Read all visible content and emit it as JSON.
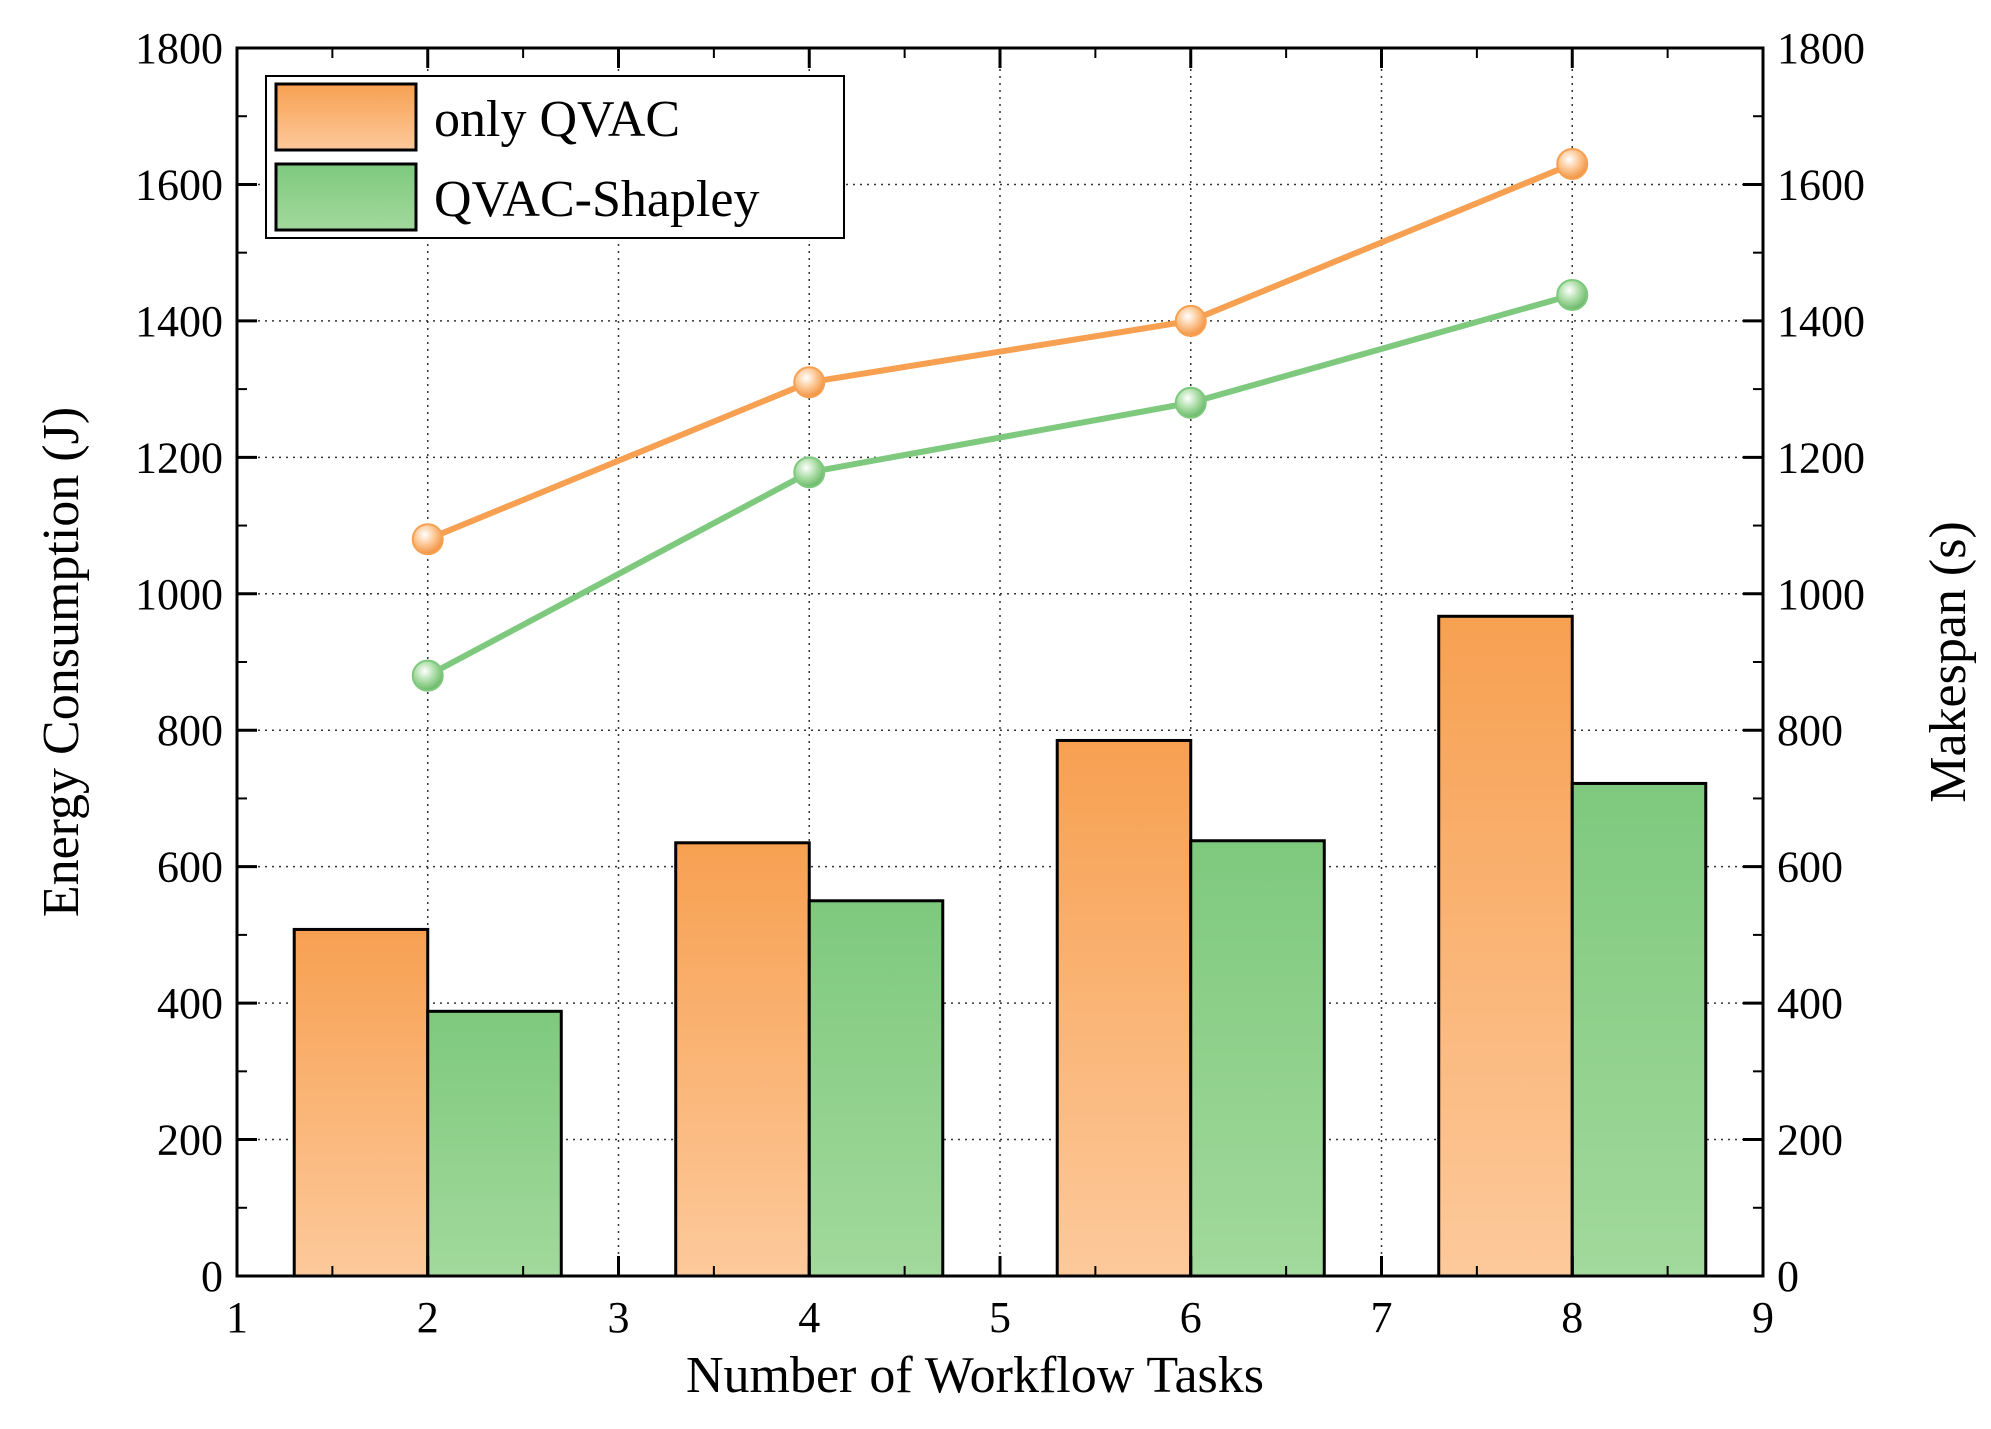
{
  "chart_data": {
    "type": "bar",
    "title": "",
    "xlabel": "Number of Workflow Tasks",
    "ylabel": "Energy Consumption (J)",
    "y2label": "Makespan (s)",
    "xlim": [
      1,
      9
    ],
    "ylim": [
      0,
      1800
    ],
    "y2lim": [
      0,
      1800
    ],
    "x_ticks": [
      1,
      2,
      3,
      4,
      5,
      6,
      7,
      8,
      9
    ],
    "y_ticks": [
      0,
      200,
      400,
      600,
      800,
      1000,
      1200,
      1400,
      1600,
      1800
    ],
    "grid": true,
    "legend_position": "top-left",
    "categories": [
      2,
      4,
      6,
      8
    ],
    "series": [
      {
        "name": "only QVAC",
        "color": "#f7a051",
        "color_light": "#fcc89a",
        "bar_values": [
          508,
          635,
          785,
          967
        ],
        "line_values": [
          1080,
          1310,
          1400,
          1630
        ]
      },
      {
        "name": "QVAC-Shapley",
        "color": "#7ec97e",
        "color_light": "#9fd99a",
        "bar_values": [
          388,
          550,
          638,
          722
        ],
        "line_values": [
          880,
          1178,
          1280,
          1438
        ]
      }
    ]
  }
}
